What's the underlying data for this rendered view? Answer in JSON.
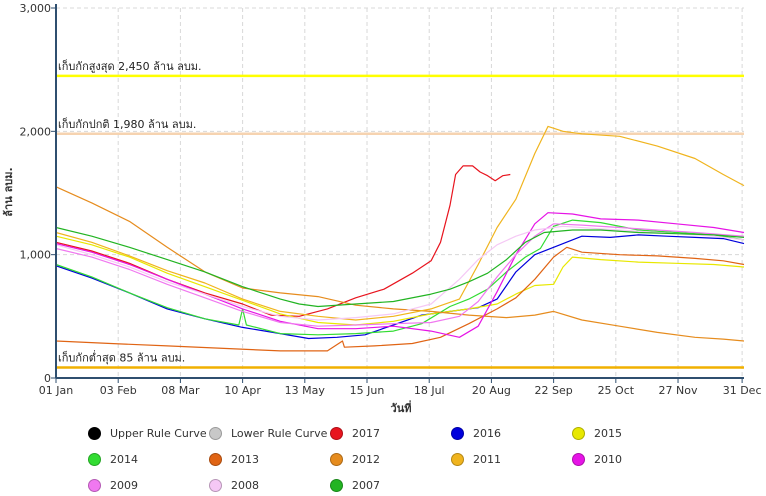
{
  "chart_data": {
    "type": "line",
    "title": "",
    "xlabel": "วันที่",
    "ylabel": "ล้าน ลบม.",
    "ylim": [
      0,
      3000
    ],
    "yticks": [
      0,
      1000,
      2000,
      3000
    ],
    "ytick_labels": [
      "0",
      "1,000",
      "2,000",
      "3,000"
    ],
    "xlim": [
      1,
      366
    ],
    "xticks": [
      1,
      34,
      67,
      100,
      133,
      166,
      199,
      232,
      265,
      298,
      331,
      365
    ],
    "xtick_labels": [
      "01 Jan",
      "03 Feb",
      "08 Mar",
      "10 Apr",
      "13 May",
      "15 Jun",
      "18 Jul",
      "20 Aug",
      "22 Sep",
      "25 Oct",
      "27 Nov",
      "31 Dec"
    ],
    "grid": true,
    "reference_lines": [
      {
        "label": "เก็บกักสูงสุด 2,450 ล้าน ลบม.",
        "value": 2450,
        "color": "#ffff00"
      },
      {
        "label": "เก็บกักปกติ 1,980 ล้าน ลบม.",
        "value": 1980,
        "color": "#f6d3b0"
      },
      {
        "label": "เก็บกักต่ำสุด 85 ล้าน ลบม.",
        "value": 85,
        "color": "#f1b000"
      }
    ],
    "series": [
      {
        "name": "Upper Rule Curve",
        "color": "#000000",
        "points": []
      },
      {
        "name": "Lower Rule Curve",
        "color": "#c8c8c8",
        "points": []
      },
      {
        "name": "2017",
        "color": "#e8141e",
        "points": [
          [
            1,
            1100
          ],
          [
            20,
            1030
          ],
          [
            40,
            930
          ],
          [
            60,
            800
          ],
          [
            80,
            690
          ],
          [
            100,
            600
          ],
          [
            115,
            510
          ],
          [
            130,
            500
          ],
          [
            145,
            560
          ],
          [
            160,
            650
          ],
          [
            175,
            720
          ],
          [
            190,
            850
          ],
          [
            200,
            950
          ],
          [
            205,
            1100
          ],
          [
            210,
            1400
          ],
          [
            213,
            1650
          ],
          [
            217,
            1720
          ],
          [
            222,
            1720
          ],
          [
            226,
            1670
          ],
          [
            230,
            1640
          ],
          [
            234,
            1600
          ],
          [
            238,
            1640
          ],
          [
            242,
            1650
          ]
        ]
      },
      {
        "name": "2016",
        "color": "#0000dc",
        "points": [
          [
            1,
            910
          ],
          [
            20,
            810
          ],
          [
            40,
            690
          ],
          [
            60,
            560
          ],
          [
            80,
            480
          ],
          [
            100,
            410
          ],
          [
            120,
            360
          ],
          [
            135,
            320
          ],
          [
            150,
            330
          ],
          [
            165,
            350
          ],
          [
            180,
            430
          ],
          [
            195,
            510
          ],
          [
            210,
            540
          ],
          [
            225,
            570
          ],
          [
            235,
            640
          ],
          [
            245,
            860
          ],
          [
            255,
            1000
          ],
          [
            265,
            1060
          ],
          [
            280,
            1150
          ],
          [
            295,
            1140
          ],
          [
            310,
            1160
          ],
          [
            325,
            1150
          ],
          [
            340,
            1140
          ],
          [
            355,
            1130
          ],
          [
            366,
            1090
          ]
        ]
      },
      {
        "name": "2015",
        "color": "#e8e800",
        "points": [
          [
            1,
            1150
          ],
          [
            20,
            1080
          ],
          [
            40,
            980
          ],
          [
            60,
            850
          ],
          [
            80,
            740
          ],
          [
            100,
            630
          ],
          [
            120,
            520
          ],
          [
            140,
            450
          ],
          [
            160,
            430
          ],
          [
            180,
            460
          ],
          [
            200,
            520
          ],
          [
            220,
            560
          ],
          [
            235,
            600
          ],
          [
            245,
            680
          ],
          [
            255,
            750
          ],
          [
            265,
            760
          ],
          [
            270,
            900
          ],
          [
            275,
            980
          ],
          [
            290,
            960
          ],
          [
            310,
            940
          ],
          [
            330,
            930
          ],
          [
            350,
            920
          ],
          [
            366,
            900
          ]
        ]
      },
      {
        "name": "2014",
        "color": "#32dc32",
        "points": [
          [
            1,
            920
          ],
          [
            20,
            820
          ],
          [
            40,
            690
          ],
          [
            60,
            570
          ],
          [
            80,
            480
          ],
          [
            98,
            430
          ],
          [
            100,
            560
          ],
          [
            102,
            430
          ],
          [
            120,
            360
          ],
          [
            140,
            350
          ],
          [
            160,
            360
          ],
          [
            180,
            380
          ],
          [
            195,
            440
          ],
          [
            210,
            580
          ],
          [
            220,
            640
          ],
          [
            230,
            720
          ],
          [
            240,
            860
          ],
          [
            250,
            980
          ],
          [
            258,
            1050
          ],
          [
            265,
            1230
          ],
          [
            275,
            1280
          ],
          [
            290,
            1260
          ],
          [
            310,
            1200
          ],
          [
            330,
            1180
          ],
          [
            350,
            1160
          ],
          [
            366,
            1120
          ]
        ]
      },
      {
        "name": "2013",
        "color": "#e06414",
        "points": [
          [
            1,
            300
          ],
          [
            30,
            280
          ],
          [
            60,
            260
          ],
          [
            90,
            240
          ],
          [
            120,
            220
          ],
          [
            145,
            220
          ],
          [
            153,
            300
          ],
          [
            154,
            250
          ],
          [
            170,
            260
          ],
          [
            190,
            280
          ],
          [
            205,
            330
          ],
          [
            220,
            440
          ],
          [
            235,
            560
          ],
          [
            245,
            650
          ],
          [
            255,
            800
          ],
          [
            265,
            980
          ],
          [
            272,
            1060
          ],
          [
            280,
            1020
          ],
          [
            300,
            1000
          ],
          [
            320,
            990
          ],
          [
            340,
            970
          ],
          [
            355,
            950
          ],
          [
            366,
            920
          ]
        ]
      },
      {
        "name": "2012",
        "color": "#e68c1e",
        "points": [
          [
            1,
            1550
          ],
          [
            20,
            1420
          ],
          [
            40,
            1270
          ],
          [
            60,
            1060
          ],
          [
            80,
            860
          ],
          [
            100,
            730
          ],
          [
            120,
            690
          ],
          [
            140,
            660
          ],
          [
            160,
            590
          ],
          [
            180,
            560
          ],
          [
            200,
            540
          ],
          [
            220,
            510
          ],
          [
            240,
            490
          ],
          [
            255,
            510
          ],
          [
            265,
            540
          ],
          [
            280,
            470
          ],
          [
            300,
            420
          ],
          [
            320,
            370
          ],
          [
            340,
            330
          ],
          [
            355,
            315
          ],
          [
            366,
            300
          ]
        ]
      },
      {
        "name": "2011",
        "color": "#f0b41e",
        "points": [
          [
            1,
            1180
          ],
          [
            20,
            1100
          ],
          [
            40,
            990
          ],
          [
            60,
            870
          ],
          [
            80,
            770
          ],
          [
            100,
            640
          ],
          [
            120,
            540
          ],
          [
            140,
            500
          ],
          [
            160,
            470
          ],
          [
            180,
            500
          ],
          [
            200,
            560
          ],
          [
            215,
            640
          ],
          [
            225,
            920
          ],
          [
            235,
            1220
          ],
          [
            245,
            1450
          ],
          [
            255,
            1820
          ],
          [
            262,
            2040
          ],
          [
            270,
            2000
          ],
          [
            280,
            1980
          ],
          [
            300,
            1960
          ],
          [
            320,
            1880
          ],
          [
            340,
            1780
          ],
          [
            355,
            1650
          ],
          [
            366,
            1560
          ]
        ]
      },
      {
        "name": "2010",
        "color": "#e614e6",
        "points": [
          [
            1,
            1090
          ],
          [
            20,
            1020
          ],
          [
            40,
            920
          ],
          [
            60,
            800
          ],
          [
            80,
            680
          ],
          [
            100,
            560
          ],
          [
            120,
            460
          ],
          [
            140,
            400
          ],
          [
            160,
            400
          ],
          [
            180,
            420
          ],
          [
            200,
            380
          ],
          [
            215,
            330
          ],
          [
            225,
            420
          ],
          [
            235,
            700
          ],
          [
            245,
            1000
          ],
          [
            255,
            1250
          ],
          [
            262,
            1340
          ],
          [
            275,
            1330
          ],
          [
            290,
            1290
          ],
          [
            310,
            1280
          ],
          [
            330,
            1250
          ],
          [
            350,
            1220
          ],
          [
            366,
            1180
          ]
        ]
      },
      {
        "name": "2009",
        "color": "#f078f0",
        "points": [
          [
            1,
            1050
          ],
          [
            20,
            980
          ],
          [
            40,
            880
          ],
          [
            60,
            760
          ],
          [
            80,
            650
          ],
          [
            100,
            540
          ],
          [
            120,
            450
          ],
          [
            140,
            420
          ],
          [
            160,
            430
          ],
          [
            180,
            440
          ],
          [
            200,
            450
          ],
          [
            215,
            500
          ],
          [
            225,
            620
          ],
          [
            235,
            820
          ],
          [
            245,
            1000
          ],
          [
            255,
            1150
          ],
          [
            265,
            1250
          ],
          [
            280,
            1240
          ],
          [
            300,
            1220
          ],
          [
            320,
            1200
          ],
          [
            340,
            1180
          ],
          [
            366,
            1150
          ]
        ]
      },
      {
        "name": "2008",
        "color": "#f5c8f5",
        "points": [
          [
            1,
            1080
          ],
          [
            20,
            1000
          ],
          [
            40,
            900
          ],
          [
            60,
            780
          ],
          [
            80,
            680
          ],
          [
            100,
            580
          ],
          [
            120,
            500
          ],
          [
            140,
            470
          ],
          [
            160,
            490
          ],
          [
            180,
            520
          ],
          [
            200,
            600
          ],
          [
            215,
            800
          ],
          [
            225,
            960
          ],
          [
            235,
            1080
          ],
          [
            245,
            1150
          ],
          [
            255,
            1200
          ],
          [
            270,
            1230
          ],
          [
            290,
            1210
          ],
          [
            310,
            1190
          ],
          [
            330,
            1170
          ],
          [
            350,
            1150
          ],
          [
            366,
            1120
          ]
        ]
      },
      {
        "name": "2007",
        "color": "#22b422",
        "points": [
          [
            1,
            1220
          ],
          [
            20,
            1150
          ],
          [
            40,
            1060
          ],
          [
            60,
            960
          ],
          [
            80,
            860
          ],
          [
            100,
            740
          ],
          [
            120,
            640
          ],
          [
            130,
            600
          ],
          [
            140,
            580
          ],
          [
            180,
            620
          ],
          [
            200,
            680
          ],
          [
            210,
            720
          ],
          [
            220,
            780
          ],
          [
            230,
            850
          ],
          [
            240,
            960
          ],
          [
            250,
            1100
          ],
          [
            260,
            1180
          ],
          [
            275,
            1200
          ],
          [
            290,
            1200
          ],
          [
            310,
            1180
          ],
          [
            330,
            1170
          ],
          [
            350,
            1160
          ],
          [
            366,
            1140
          ]
        ]
      }
    ]
  }
}
